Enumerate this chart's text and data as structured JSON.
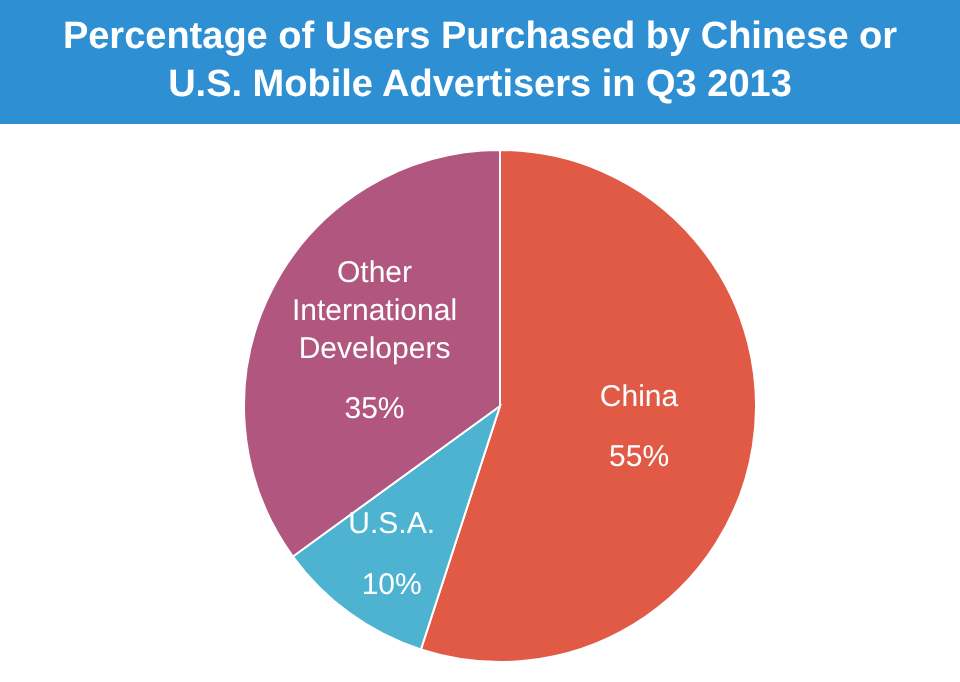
{
  "chart_data": {
    "type": "pie",
    "title": "Percentage of Users Purchased by Chinese or U.S. Mobile Advertisers in Q3 2013",
    "categories": [
      "China",
      "U.S.A.",
      "Other International Developers"
    ],
    "values": [
      55,
      10,
      35
    ],
    "colors": [
      "#e05a46",
      "#4db3d1",
      "#b1577f"
    ],
    "value_labels": [
      "55%",
      "10%",
      "35%"
    ],
    "legend": false
  }
}
